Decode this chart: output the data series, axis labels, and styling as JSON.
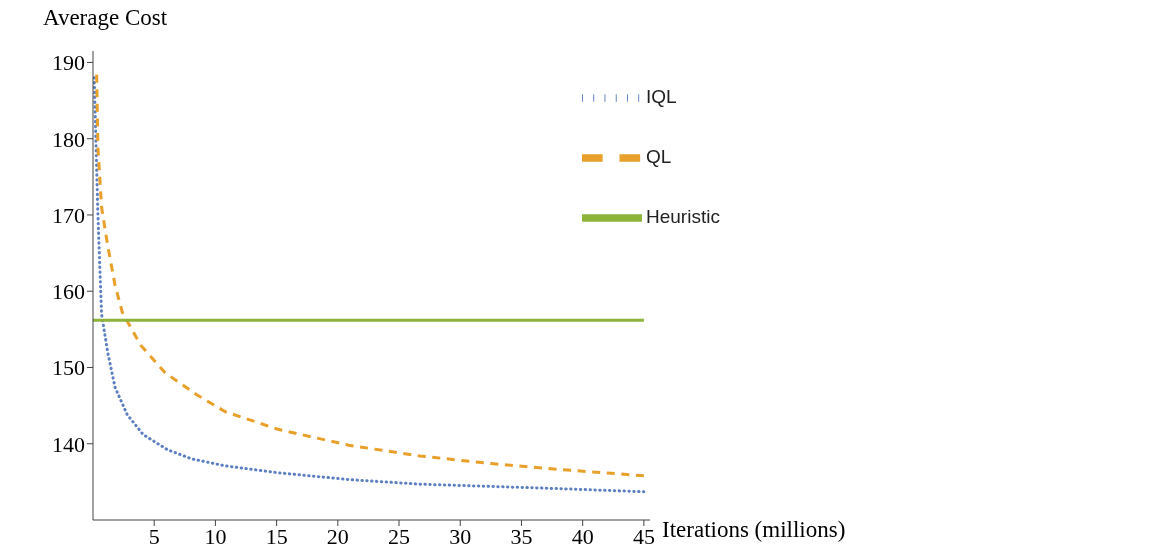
{
  "chart_data": {
    "type": "line",
    "xlabel": "Iterations (millions)",
    "ylabel": "Average Cost",
    "xlim": [
      0,
      45.5
    ],
    "ylim": [
      130,
      191.5
    ],
    "xticks": [
      5,
      10,
      15,
      20,
      25,
      30,
      35,
      40,
      45
    ],
    "yticks": [
      140,
      150,
      160,
      170,
      180,
      190
    ],
    "grid": false,
    "legend": "top right",
    "marker": "none",
    "series": [
      {
        "name": "IQL",
        "color": "#5b7fc0",
        "line_style": "dotted",
        "x": [
          0.1,
          0.4,
          0.7,
          1.2,
          1.8,
          2.8,
          4.1,
          6.1,
          8.1,
          10.8,
          15.1,
          20.9,
          26.7,
          32.5,
          38.3,
          45
        ],
        "values": [
          188,
          170,
          157,
          152,
          147.4,
          143.8,
          141.2,
          139.2,
          138,
          137.1,
          136.2,
          135.3,
          134.7,
          134.4,
          134.1,
          133.7
        ]
      },
      {
        "name": "QL",
        "color": "#e8a02a",
        "line_style": "dashed",
        "x": [
          0.3,
          0.4,
          0.7,
          1.2,
          1.8,
          2.4,
          3.9,
          5.9,
          8.5,
          10.8,
          15.1,
          20.9,
          26.7,
          32.5,
          38.3,
          45
        ],
        "values": [
          188.4,
          178.9,
          171,
          166,
          160.8,
          157.2,
          152.9,
          149.3,
          146.4,
          144.2,
          141.9,
          139.8,
          138.4,
          137.4,
          136.6,
          135.8
        ]
      },
      {
        "name": "Heuristic",
        "color": "#8db33a",
        "line_style": "solid",
        "x": [
          0,
          45
        ],
        "values": [
          156.2,
          156.2
        ]
      }
    ]
  }
}
